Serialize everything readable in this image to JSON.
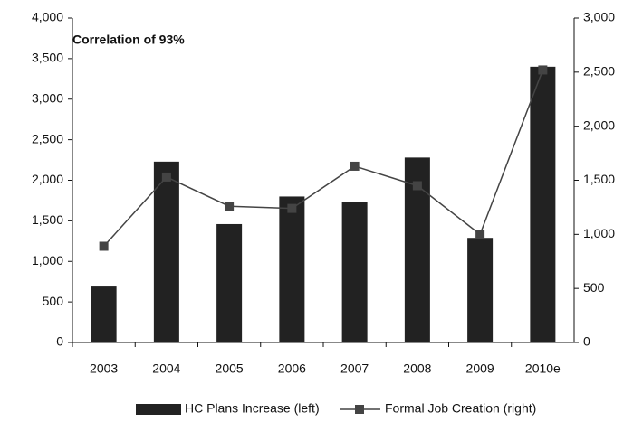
{
  "chart_data": {
    "type": "bar-line",
    "annotation": "Correlation of 93%",
    "categories": [
      "2003",
      "2004",
      "2005",
      "2006",
      "2007",
      "2008",
      "2009",
      "2010e"
    ],
    "series": [
      {
        "name": "HC Plans Increase (left)",
        "type": "bar",
        "color": "#222222",
        "values": [
          690,
          2230,
          1460,
          1800,
          1730,
          2280,
          1290,
          3400
        ]
      },
      {
        "name": "Formal Job Creation (right)",
        "type": "line",
        "axis": "y2",
        "color": "#444444",
        "values": [
          890,
          1530,
          1260,
          1240,
          1630,
          1450,
          1000,
          2520
        ]
      }
    ],
    "ylim": [
      0,
      4000
    ],
    "yticks": [
      0,
      500,
      {
        "value": 1000,
        "label": "1,000"
      },
      {
        "value": 1500,
        "label": "1,500"
      },
      {
        "value": 2000,
        "label": "2,000"
      },
      {
        "value": 2500,
        "label": "2,500"
      },
      {
        "value": 3000,
        "label": "3,000"
      },
      {
        "value": 3500,
        "label": "3,500"
      },
      {
        "value": 4000,
        "label": "4,000"
      }
    ],
    "y2lim": [
      0,
      3000
    ],
    "y2ticks": [
      0,
      500,
      {
        "value": 1000,
        "label": "1,000"
      },
      {
        "value": 1500,
        "label": "1,500"
      },
      {
        "value": 2000,
        "label": "2,000"
      },
      {
        "value": 2500,
        "label": "2,500"
      },
      {
        "value": 3000,
        "label": "3,000"
      }
    ],
    "grid": false
  }
}
